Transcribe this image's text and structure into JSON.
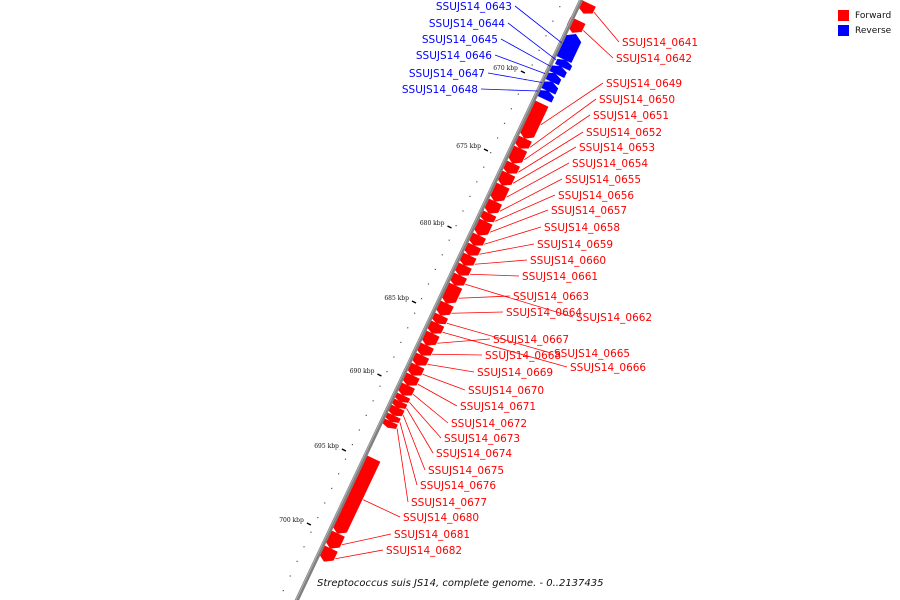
{
  "legend": [
    {
      "label": "Forward",
      "color": "#ff0000"
    },
    {
      "label": "Reverse",
      "color": "#0000ff"
    }
  ],
  "caption": "Streptococcus suis JS14, complete genome. - 0..2137435",
  "colors": {
    "forward": "#ff0000",
    "reverse": "#0000ff",
    "backbone": "#808080"
  },
  "ticks": [
    "670 kbp",
    "675 kbp",
    "680 kbp",
    "685 kbp",
    "690 kbp",
    "695 kbp",
    "700 kbp"
  ],
  "genes": [
    {
      "name": "SSUJS14_0641",
      "strand": "forward"
    },
    {
      "name": "SSUJS14_0642",
      "strand": "forward"
    },
    {
      "name": "SSUJS14_0643",
      "strand": "reverse"
    },
    {
      "name": "SSUJS14_0644",
      "strand": "reverse"
    },
    {
      "name": "SSUJS14_0645",
      "strand": "reverse"
    },
    {
      "name": "SSUJS14_0646",
      "strand": "reverse"
    },
    {
      "name": "SSUJS14_0647",
      "strand": "reverse"
    },
    {
      "name": "SSUJS14_0648",
      "strand": "reverse"
    },
    {
      "name": "SSUJS14_0649",
      "strand": "forward"
    },
    {
      "name": "SSUJS14_0650",
      "strand": "forward"
    },
    {
      "name": "SSUJS14_0651",
      "strand": "forward"
    },
    {
      "name": "SSUJS14_0652",
      "strand": "forward"
    },
    {
      "name": "SSUJS14_0653",
      "strand": "forward"
    },
    {
      "name": "SSUJS14_0654",
      "strand": "forward"
    },
    {
      "name": "SSUJS14_0655",
      "strand": "forward"
    },
    {
      "name": "SSUJS14_0656",
      "strand": "forward"
    },
    {
      "name": "SSUJS14_0657",
      "strand": "forward"
    },
    {
      "name": "SSUJS14_0658",
      "strand": "forward"
    },
    {
      "name": "SSUJS14_0659",
      "strand": "forward"
    },
    {
      "name": "SSUJS14_0660",
      "strand": "forward"
    },
    {
      "name": "SSUJS14_0661",
      "strand": "forward"
    },
    {
      "name": "SSUJS14_0662",
      "strand": "forward"
    },
    {
      "name": "SSUJS14_0663",
      "strand": "forward"
    },
    {
      "name": "SSUJS14_0664",
      "strand": "forward"
    },
    {
      "name": "SSUJS14_0665",
      "strand": "forward"
    },
    {
      "name": "SSUJS14_0666",
      "strand": "forward"
    },
    {
      "name": "SSUJS14_0667",
      "strand": "forward"
    },
    {
      "name": "SSUJS14_0668",
      "strand": "forward"
    },
    {
      "name": "SSUJS14_0669",
      "strand": "forward"
    },
    {
      "name": "SSUJS14_0670",
      "strand": "forward"
    },
    {
      "name": "SSUJS14_0671",
      "strand": "forward"
    },
    {
      "name": "SSUJS14_0672",
      "strand": "forward"
    },
    {
      "name": "SSUJS14_0673",
      "strand": "forward"
    },
    {
      "name": "SSUJS14_0674",
      "strand": "forward"
    },
    {
      "name": "SSUJS14_0675",
      "strand": "forward"
    },
    {
      "name": "SSUJS14_0676",
      "strand": "forward"
    },
    {
      "name": "SSUJS14_0677",
      "strand": "forward"
    },
    {
      "name": "SSUJS14_0680",
      "strand": "forward"
    },
    {
      "name": "SSUJS14_0681",
      "strand": "forward"
    },
    {
      "name": "SSUJS14_0682",
      "strand": "forward"
    }
  ]
}
